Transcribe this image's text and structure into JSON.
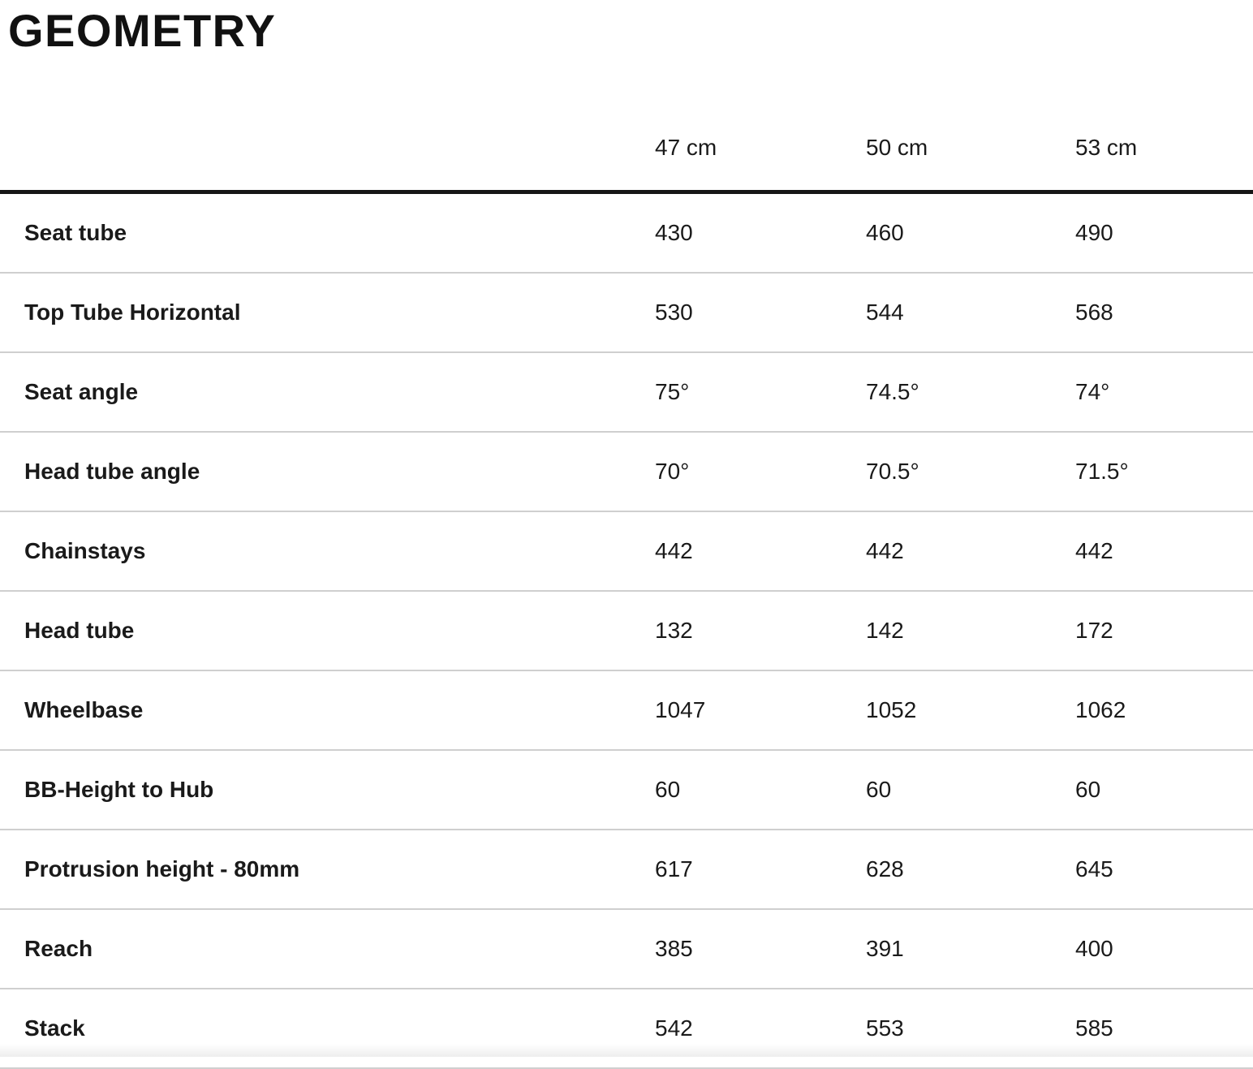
{
  "page": {
    "title": "GEOMETRY"
  },
  "table": {
    "columns": [
      "47 cm",
      "50 cm",
      "53 cm"
    ],
    "rows": [
      {
        "label": "Seat tube",
        "values": [
          "430",
          "460",
          "490"
        ]
      },
      {
        "label": "Top Tube Horizontal",
        "values": [
          "530",
          "544",
          "568"
        ]
      },
      {
        "label": "Seat angle",
        "values": [
          "75°",
          "74.5°",
          "74°"
        ]
      },
      {
        "label": "Head tube angle",
        "values": [
          "70°",
          "70.5°",
          "71.5°"
        ]
      },
      {
        "label": "Chainstays",
        "values": [
          "442",
          "442",
          "442"
        ]
      },
      {
        "label": "Head tube",
        "values": [
          "132",
          "142",
          "172"
        ]
      },
      {
        "label": "Wheelbase",
        "values": [
          "1047",
          "1052",
          "1062"
        ]
      },
      {
        "label": "BB-Height to Hub",
        "values": [
          "60",
          "60",
          "60"
        ]
      },
      {
        "label": "Protrusion height - 80mm",
        "values": [
          "617",
          "628",
          "645"
        ]
      },
      {
        "label": "Reach",
        "values": [
          "385",
          "391",
          "400"
        ]
      },
      {
        "label": "Stack",
        "values": [
          "542",
          "553",
          "585"
        ]
      }
    ]
  },
  "colors": {
    "text": "#1a1a1a",
    "header_rule": "#161616",
    "row_divider": "#cfcfcf",
    "background": "#ffffff"
  }
}
